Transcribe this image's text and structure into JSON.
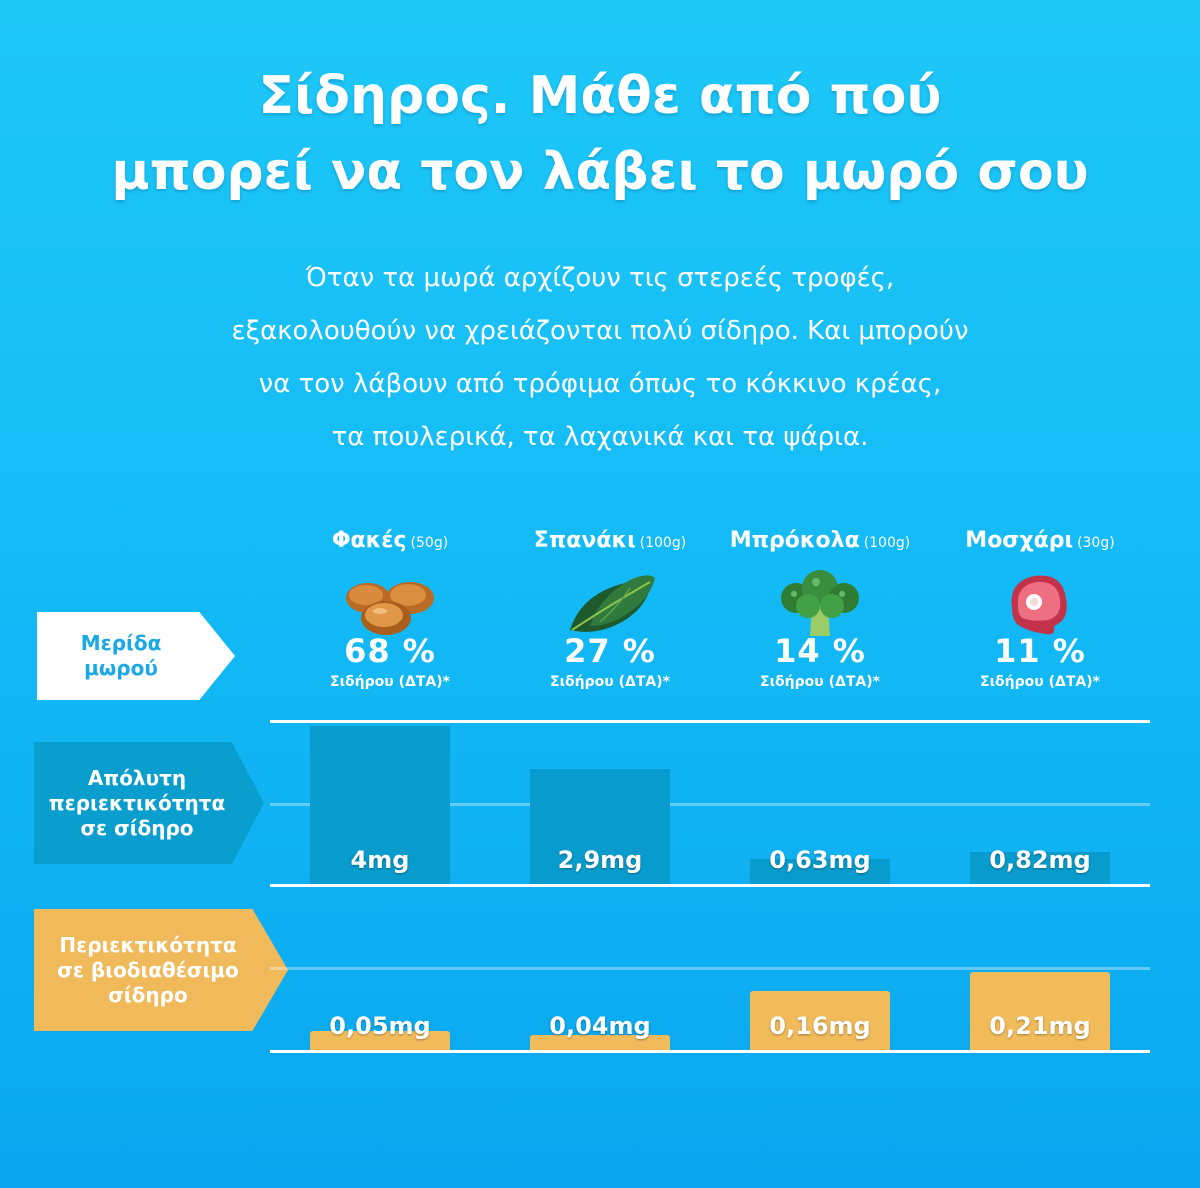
{
  "title": {
    "line1": "Σίδηρος. Μάθε από πού",
    "line2": "μπορεί να τον λάβει το μωρό σου"
  },
  "intro": {
    "line1": "Όταν τα μωρά αρχίζουν τις στερεές τροφές,",
    "line2": "εξακολουθούν να χρειάζονται πολύ σίδηρο. Και μπορούν",
    "line3": "να τον λάβουν από τρόφιμα όπως το κόκκινο κρέας,",
    "line4": "τα πουλερικά, τα λαχανικά και τα ψάρια."
  },
  "row_labels": {
    "portion": {
      "line1": "Μερίδα",
      "line2": "μωρού"
    },
    "absolute": {
      "line1": "Απόλυτη",
      "line2": "περιεκτικότητα",
      "line3": "σε σίδηρο"
    },
    "bioavailable": {
      "line1": "Περιεκτικότητα",
      "line2": "σε βιοδιαθέσιμο",
      "line3": "σίδηρο"
    }
  },
  "foods": [
    {
      "name": "Φακές",
      "portion": "(50g)",
      "icon": "lentils-icon",
      "pct": "68 %",
      "pct_label": "Σιδήρου (ΔΤΑ)*"
    },
    {
      "name": "Σπανάκι",
      "portion": "(100g)",
      "icon": "spinach-icon",
      "pct": "27 %",
      "pct_label": "Σιδήρου (ΔΤΑ)*"
    },
    {
      "name": "Μπρόκολα",
      "portion": "(100g)",
      "icon": "broccoli-icon",
      "pct": "14 %",
      "pct_label": "Σιδήρου (ΔΤΑ)*"
    },
    {
      "name": "Μοσχάρι",
      "portion": "(30g)",
      "icon": "steak-icon",
      "pct": "11 %",
      "pct_label": "Σιδήρου (ΔΤΑ)*"
    }
  ],
  "colors": {
    "background": "#14bcf5",
    "absolute_bar": "#079ccd",
    "absolute_badge": "#0a9ecf",
    "bio_bar": "#f2bb5a",
    "bio_badge": "#f0b95a",
    "portion_badge": "#ffffff",
    "portion_text": "#1aa9e6"
  },
  "chart_data": [
    {
      "type": "bar",
      "categories": [
        "Φακές",
        "Σπανάκι",
        "Μπρόκολα",
        "Μοσχάρι"
      ],
      "values": [
        4,
        2.9,
        0.63,
        0.82
      ],
      "value_labels": [
        "4mg",
        "2,9mg",
        "0,63mg",
        "0,82mg"
      ],
      "unit": "mg",
      "ylim": [
        0,
        4
      ]
    },
    {
      "type": "bar",
      "categories": [
        "Φακές",
        "Σπανάκι",
        "Μπρόκολα",
        "Μοσχάρι"
      ],
      "values": [
        0.05,
        0.04,
        0.16,
        0.21
      ],
      "value_labels": [
        "0,05mg",
        "0,04mg",
        "0,16mg",
        "0,21mg"
      ],
      "unit": "mg",
      "ylim": [
        0,
        0.21
      ]
    }
  ]
}
